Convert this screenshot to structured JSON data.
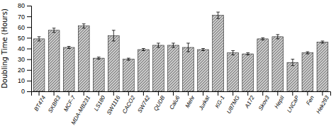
{
  "chart_data": {
    "type": "bar",
    "ylabel": "Doubling Time (Hours)",
    "categories": [
      "BT474",
      "SKBR3",
      "MCF-7",
      "MDA-MB231",
      "LS180",
      "SW1116",
      "CACO2",
      "SW742",
      "QUDB",
      "Calu6",
      "Mehr",
      "Jurkat",
      "KG-1",
      "U87MG",
      "A172",
      "Skov3",
      "HepII",
      "LNCaP",
      "Fen",
      "Hek293"
    ],
    "values": [
      49,
      57,
      41,
      61,
      31,
      52,
      30,
      39,
      43,
      43,
      41,
      39,
      71,
      36,
      35,
      49,
      51,
      27,
      36,
      46
    ],
    "errors": [
      2,
      2,
      1,
      2,
      1,
      5,
      1,
      1,
      2,
      2,
      4,
      1,
      3,
      2,
      1,
      1,
      2,
      3,
      1,
      1
    ],
    "color": "#c8c8c8",
    "ylim": [
      0,
      80
    ],
    "yticks": [
      0,
      10,
      20,
      30,
      40,
      50,
      60,
      70,
      80
    ]
  }
}
